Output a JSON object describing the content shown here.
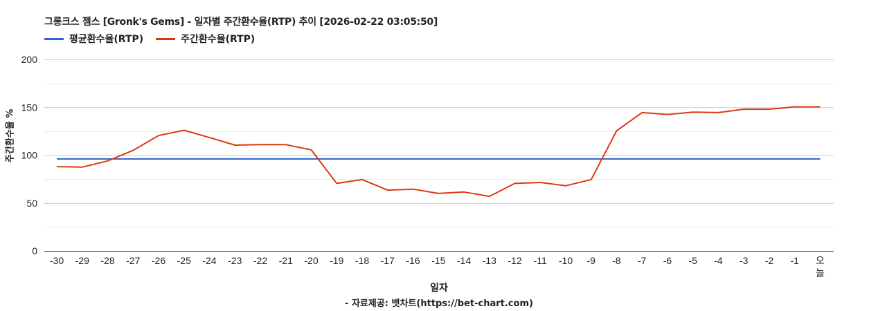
{
  "header": {
    "title": "그롱크스 젬스 [Gronk's Gems] - 일자별 주간환수율(RTP) 추이 [2026-02-22 03:05:50]"
  },
  "legend": [
    {
      "label": "평균환수율(RTP)",
      "color": "#3366cc"
    },
    {
      "label": "주간환수율(RTP)",
      "color": "#dc3912"
    }
  ],
  "axes": {
    "y_title": "주간환수율 %",
    "x_title": "일자"
  },
  "footer": {
    "source": "- 자료제공: 벳차트(https://bet-chart.com)"
  },
  "chart_data": {
    "type": "line",
    "title": "그롱크스 젬스 [Gronk's Gems] - 일자별 주간환수율(RTP) 추이 [2026-02-22 03:05:50]",
    "xlabel": "일자",
    "ylabel": "주간환수율 %",
    "ylim": [
      0,
      200
    ],
    "yticks": [
      0,
      50,
      100,
      150,
      200
    ],
    "minor_gridlines": [
      25,
      75,
      125,
      175
    ],
    "grid": true,
    "legend_position": "top",
    "categories": [
      "-30",
      "-29",
      "-28",
      "-27",
      "-26",
      "-25",
      "-24",
      "-23",
      "-22",
      "-21",
      "-20",
      "-19",
      "-18",
      "-17",
      "-16",
      "-15",
      "-14",
      "-13",
      "-12",
      "-11",
      "-10",
      "-9",
      "-8",
      "-7",
      "-6",
      "-5",
      "-4",
      "-3",
      "-2",
      "-1",
      "오늘"
    ],
    "series": [
      {
        "name": "평균환수율(RTP)",
        "color": "#3366cc",
        "values": [
          96,
          96,
          96,
          96,
          96,
          96,
          96,
          96,
          96,
          96,
          96,
          96,
          96,
          96,
          96,
          96,
          96,
          96,
          96,
          96,
          96,
          96,
          96,
          96,
          96,
          96,
          96,
          96,
          96,
          96,
          96
        ]
      },
      {
        "name": "주간환수율(RTP)",
        "color": "#dc3912",
        "values": [
          88,
          87.5,
          94,
          105,
          120.5,
          126,
          118.5,
          110.5,
          111,
          111,
          105.5,
          70.5,
          74.5,
          63.5,
          64.5,
          60,
          61.5,
          57,
          70.5,
          71.5,
          68,
          74.5,
          125.5,
          144.5,
          142.5,
          145,
          144.5,
          148,
          148,
          150.5,
          150.5
        ]
      }
    ]
  }
}
